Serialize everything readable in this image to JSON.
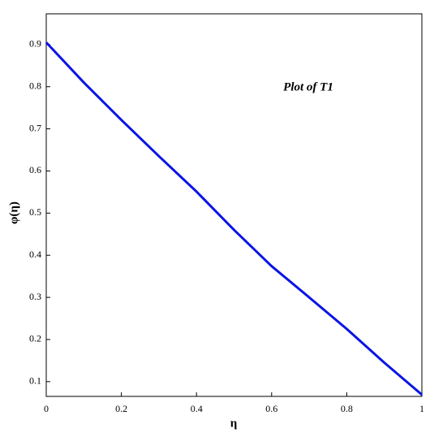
{
  "chart_data": {
    "type": "line",
    "annotation": "Plot of  T1",
    "xlabel": "η",
    "ylabel": "φ(η)",
    "x": [
      0,
      0.1,
      0.2,
      0.3,
      0.4,
      0.5,
      0.6,
      0.7,
      0.8,
      0.9,
      1
    ],
    "series": [
      {
        "name": "T1",
        "color": "#0a14e6",
        "values": [
          0.905,
          0.81,
          0.721,
          0.635,
          0.551,
          0.46,
          0.374,
          0.3,
          0.225,
          0.145,
          0.069
        ]
      }
    ],
    "xlim": [
      0,
      1
    ],
    "xticks": [
      0,
      0.2,
      0.4,
      0.6,
      0.8,
      1
    ],
    "ylim": [
      0.065,
      0.973
    ],
    "yticks": [
      0.1,
      0.2,
      0.3,
      0.4,
      0.5,
      0.6,
      0.7,
      0.8,
      0.9
    ]
  }
}
